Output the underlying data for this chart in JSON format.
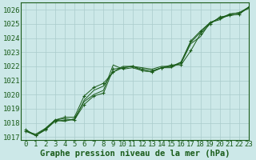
{
  "xlabel": "Graphe pression niveau de la mer (hPa)",
  "ylim": [
    1016.8,
    1026.5
  ],
  "xlim": [
    -0.5,
    23
  ],
  "yticks": [
    1017,
    1018,
    1019,
    1020,
    1021,
    1022,
    1023,
    1024,
    1025,
    1026
  ],
  "xticks": [
    0,
    1,
    2,
    3,
    4,
    5,
    6,
    7,
    8,
    9,
    10,
    11,
    12,
    13,
    14,
    15,
    16,
    17,
    18,
    19,
    20,
    21,
    22,
    23
  ],
  "bg_color": "#cce8e8",
  "grid_color": "#aacccc",
  "line_color": "#1a5c1a",
  "series1": [
    1017.5,
    1017.1,
    1017.5,
    1018.1,
    1018.2,
    1018.2,
    1019.3,
    1019.9,
    1020.1,
    1021.8,
    1021.9,
    1022.0,
    1021.8,
    1021.7,
    1021.9,
    1022.1,
    1022.1,
    1023.1,
    1024.3,
    1025.0,
    1025.5,
    1025.6,
    1025.7,
    1026.2
  ],
  "series2": [
    1017.5,
    1017.1,
    1017.5,
    1018.2,
    1018.3,
    1018.2,
    1019.6,
    1020.3,
    1020.6,
    1021.6,
    1022.0,
    1022.0,
    1021.9,
    1021.8,
    1022.0,
    1022.0,
    1022.2,
    1023.6,
    1024.1,
    1025.1,
    1025.4,
    1025.6,
    1025.7,
    1026.2
  ],
  "series3": [
    1017.4,
    1017.1,
    1017.6,
    1018.2,
    1018.4,
    1018.4,
    1019.9,
    1020.5,
    1020.8,
    1021.6,
    1021.9,
    1022.0,
    1021.7,
    1021.6,
    1021.9,
    1022.0,
    1022.3,
    1023.8,
    1024.5,
    1025.1,
    1025.4,
    1025.7,
    1025.8,
    1026.2
  ],
  "series4": [
    1017.4,
    1017.2,
    1017.6,
    1018.2,
    1018.1,
    1018.3,
    1019.5,
    1020.0,
    1020.3,
    1022.1,
    1021.8,
    1021.9,
    1021.7,
    1021.6,
    1021.9,
    1021.9,
    1022.3,
    1023.7,
    1024.4,
    1025.1,
    1025.3,
    1025.7,
    1025.8,
    1026.1
  ],
  "title_fontsize": 7.5,
  "tick_fontsize": 6.5
}
